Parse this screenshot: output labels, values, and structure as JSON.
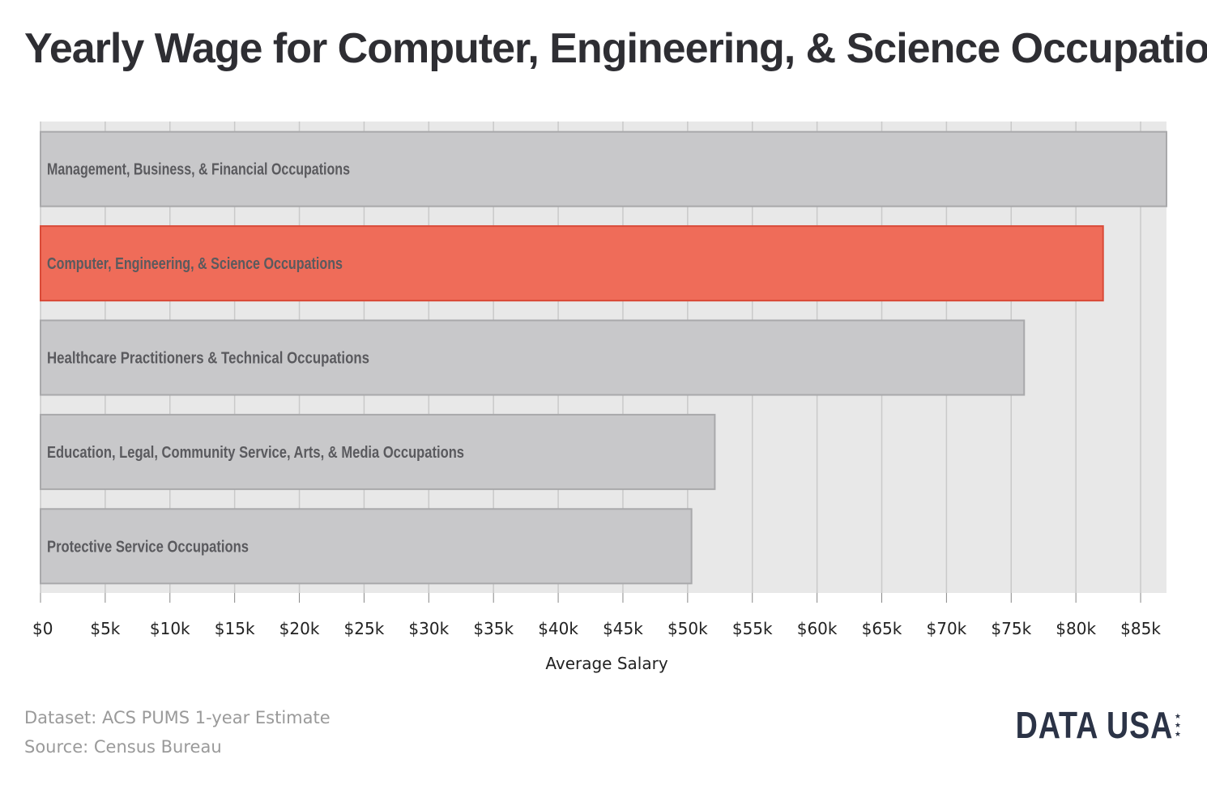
{
  "header": {
    "title": "Yearly Wage for Computer, Engineering, & Science Occupations"
  },
  "chart_data": {
    "type": "bar",
    "orientation": "horizontal",
    "title": "Yearly Wage for Computer, Engineering, & Science Occupations",
    "xlabel": "Average Salary",
    "ylabel": "",
    "xlim": [
      0,
      87000
    ],
    "grid": true,
    "ticks": [
      {
        "value": 0,
        "label": "$0"
      },
      {
        "value": 5000,
        "label": "$5k"
      },
      {
        "value": 10000,
        "label": "$10k"
      },
      {
        "value": 15000,
        "label": "$15k"
      },
      {
        "value": 20000,
        "label": "$20k"
      },
      {
        "value": 25000,
        "label": "$25k"
      },
      {
        "value": 30000,
        "label": "$30k"
      },
      {
        "value": 35000,
        "label": "$35k"
      },
      {
        "value": 40000,
        "label": "$40k"
      },
      {
        "value": 45000,
        "label": "$45k"
      },
      {
        "value": 50000,
        "label": "$50k"
      },
      {
        "value": 55000,
        "label": "$55k"
      },
      {
        "value": 60000,
        "label": "$60k"
      },
      {
        "value": 65000,
        "label": "$65k"
      },
      {
        "value": 70000,
        "label": "$70k"
      },
      {
        "value": 75000,
        "label": "$75k"
      },
      {
        "value": 80000,
        "label": "$80k"
      },
      {
        "value": 85000,
        "label": "$85k"
      }
    ],
    "categories": [
      "Management, Business, & Financial Occupations",
      "Computer, Engineering, & Science Occupations",
      "Healthcare Practitioners & Technical Occupations",
      "Education, Legal, Community Service, Arts, & Media Occupations",
      "Protective Service Occupations"
    ],
    "values": [
      87000,
      82100,
      76000,
      52100,
      50300
    ],
    "highlight_index": 1,
    "colors": {
      "bar": "#c8c8ca",
      "bar_stroke": "#a9a9ab",
      "highlight": "#ef6c59",
      "highlight_stroke": "#d94a38",
      "plot_background": "#e8e8e8",
      "grid": "#c9c9c9",
      "bar_label": "#5a5a5e",
      "tick_label": "#222222"
    }
  },
  "footer": {
    "dataset": "Dataset: ACS PUMS 1-year Estimate",
    "source": "Source: Census Bureau"
  },
  "brand": {
    "logo_text": "DATA USA",
    "stars": "★★★"
  }
}
